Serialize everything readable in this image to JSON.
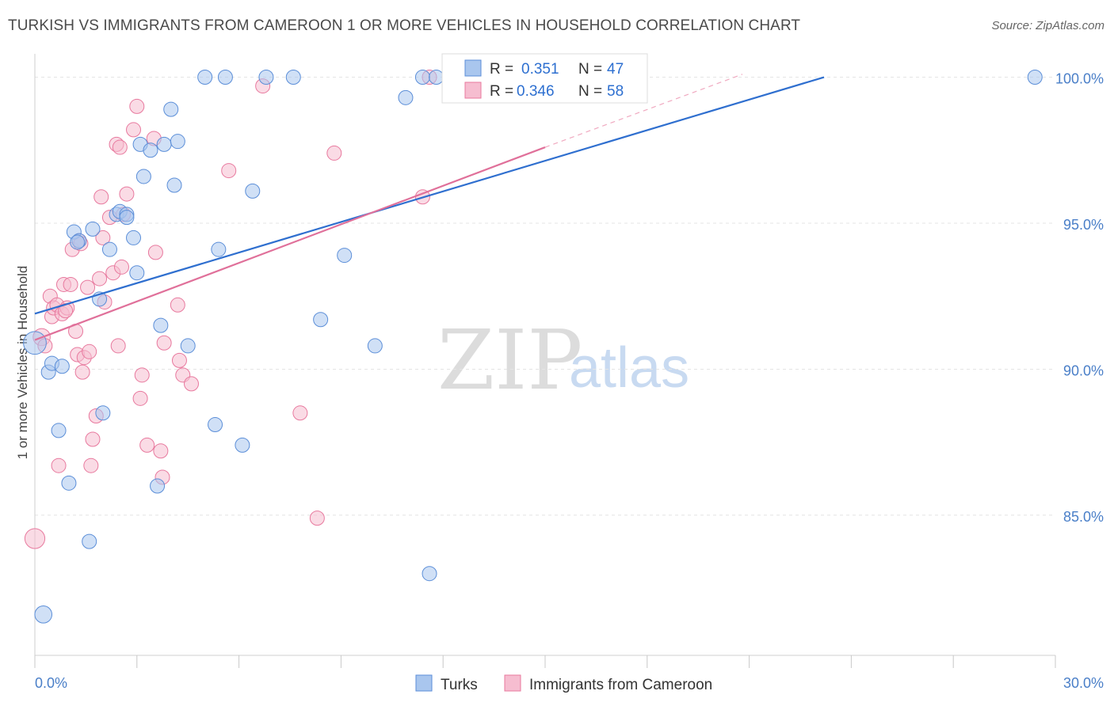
{
  "title": "TURKISH VS IMMIGRANTS FROM CAMEROON 1 OR MORE VEHICLES IN HOUSEHOLD CORRELATION CHART",
  "source": "Source: ZipAtlas.com",
  "colors": {
    "blue": "#5b8ed8",
    "blue_fill": "#a9c6ee",
    "pink": "#e8799e",
    "pink_fill": "#f6bdd0",
    "tick_text": "#4a7fc8"
  },
  "watermark": {
    "part1": "ZIP",
    "part2": "atlas"
  },
  "legend": {
    "r_label": "R =",
    "n_label": "N =",
    "rows": [
      {
        "r": "0.351",
        "n": "47"
      },
      {
        "r": "0.346",
        "n": "58"
      }
    ]
  },
  "chart_data": {
    "type": "scatter",
    "title": "TURKISH VS IMMIGRANTS FROM CAMEROON 1 OR MORE VEHICLES IN HOUSEHOLD CORRELATION CHART",
    "xlabel": "",
    "ylabel": "1 or more Vehicles in Household",
    "xlim": [
      0,
      30
    ],
    "ylim": [
      80.2,
      100.8
    ],
    "x_tick_labels": [
      "0.0%",
      "30.0%"
    ],
    "y_ticks": [
      85,
      90,
      95,
      100
    ],
    "y_tick_labels": [
      "85.0%",
      "90.0%",
      "95.0%",
      "100.0%"
    ],
    "legend_position": "top-center",
    "series": [
      {
        "name": "Turks",
        "color": "blue",
        "r": 0.351,
        "n": 47,
        "trend": {
          "x0": 0,
          "y0": 91.9,
          "x1": 23.2,
          "y1": 100
        },
        "points": [
          {
            "x": 0.0,
            "y": 90.9,
            "s": 1.6
          },
          {
            "x": 0.25,
            "y": 81.6,
            "s": 1.2
          },
          {
            "x": 0.4,
            "y": 89.9,
            "s": 1
          },
          {
            "x": 0.5,
            "y": 90.2,
            "s": 1
          },
          {
            "x": 0.7,
            "y": 87.9,
            "s": 1
          },
          {
            "x": 0.8,
            "y": 90.1,
            "s": 1
          },
          {
            "x": 1.0,
            "y": 86.1,
            "s": 1
          },
          {
            "x": 1.15,
            "y": 94.7,
            "s": 1
          },
          {
            "x": 1.3,
            "y": 94.4,
            "s": 1
          },
          {
            "x": 1.6,
            "y": 84.1,
            "s": 1
          },
          {
            "x": 1.7,
            "y": 94.8,
            "s": 1
          },
          {
            "x": 1.9,
            "y": 92.4,
            "s": 1
          },
          {
            "x": 2.0,
            "y": 88.5,
            "s": 1
          },
          {
            "x": 2.2,
            "y": 94.1,
            "s": 1
          },
          {
            "x": 2.4,
            "y": 95.3,
            "s": 1
          },
          {
            "x": 2.5,
            "y": 95.4,
            "s": 1
          },
          {
            "x": 2.7,
            "y": 95.3,
            "s": 1
          },
          {
            "x": 2.9,
            "y": 94.5,
            "s": 1
          },
          {
            "x": 3.0,
            "y": 93.3,
            "s": 1
          },
          {
            "x": 3.1,
            "y": 97.7,
            "s": 1
          },
          {
            "x": 3.2,
            "y": 96.6,
            "s": 1
          },
          {
            "x": 3.4,
            "y": 97.5,
            "s": 1
          },
          {
            "x": 3.6,
            "y": 86.0,
            "s": 1
          },
          {
            "x": 3.8,
            "y": 97.7,
            "s": 1
          },
          {
            "x": 4.1,
            "y": 96.3,
            "s": 1
          },
          {
            "x": 4.0,
            "y": 98.9,
            "s": 1
          },
          {
            "x": 3.7,
            "y": 91.5,
            "s": 1
          },
          {
            "x": 4.2,
            "y": 97.8,
            "s": 1
          },
          {
            "x": 4.5,
            "y": 90.8,
            "s": 1
          },
          {
            "x": 5.0,
            "y": 100,
            "s": 1
          },
          {
            "x": 5.3,
            "y": 88.1,
            "s": 1
          },
          {
            "x": 5.4,
            "y": 94.1,
            "s": 1
          },
          {
            "x": 5.6,
            "y": 100,
            "s": 1
          },
          {
            "x": 6.1,
            "y": 87.4,
            "s": 1
          },
          {
            "x": 6.4,
            "y": 96.1,
            "s": 1
          },
          {
            "x": 6.8,
            "y": 100,
            "s": 1
          },
          {
            "x": 7.6,
            "y": 100,
            "s": 1
          },
          {
            "x": 8.4,
            "y": 91.7,
            "s": 1
          },
          {
            "x": 9.1,
            "y": 93.9,
            "s": 1
          },
          {
            "x": 10.0,
            "y": 90.8,
            "s": 1
          },
          {
            "x": 10.9,
            "y": 99.3,
            "s": 1
          },
          {
            "x": 11.4,
            "y": 100,
            "s": 1
          },
          {
            "x": 11.6,
            "y": 83.0,
            "s": 1
          },
          {
            "x": 11.8,
            "y": 100,
            "s": 1
          },
          {
            "x": 29.4,
            "y": 100,
            "s": 1
          },
          {
            "x": 2.7,
            "y": 95.2,
            "s": 1
          },
          {
            "x": 1.25,
            "y": 94.35,
            "s": 1
          }
        ]
      },
      {
        "name": "Immigrants from Cameroon",
        "color": "pink",
        "r": 0.346,
        "n": 58,
        "trend": {
          "x0": 0,
          "y0": 91.0,
          "x1": 15.0,
          "y1": 97.6
        },
        "trend_ext": {
          "x0": 15.0,
          "y0": 97.6,
          "x1": 20.8,
          "y1": 100.1
        },
        "points": [
          {
            "x": 0.0,
            "y": 84.2,
            "s": 1.4
          },
          {
            "x": 0.2,
            "y": 91.1,
            "s": 1.2
          },
          {
            "x": 0.3,
            "y": 90.8,
            "s": 1
          },
          {
            "x": 0.45,
            "y": 92.5,
            "s": 1
          },
          {
            "x": 0.5,
            "y": 91.8,
            "s": 1
          },
          {
            "x": 0.55,
            "y": 92.1,
            "s": 1
          },
          {
            "x": 0.65,
            "y": 92.2,
            "s": 1
          },
          {
            "x": 0.7,
            "y": 86.7,
            "s": 1
          },
          {
            "x": 0.8,
            "y": 91.9,
            "s": 1
          },
          {
            "x": 0.85,
            "y": 92.9,
            "s": 1
          },
          {
            "x": 0.95,
            "y": 92.1,
            "s": 1
          },
          {
            "x": 1.05,
            "y": 92.9,
            "s": 1
          },
          {
            "x": 1.1,
            "y": 94.1,
            "s": 1
          },
          {
            "x": 1.2,
            "y": 91.3,
            "s": 1
          },
          {
            "x": 1.25,
            "y": 90.5,
            "s": 1
          },
          {
            "x": 1.3,
            "y": 94.4,
            "s": 1
          },
          {
            "x": 1.4,
            "y": 89.9,
            "s": 1
          },
          {
            "x": 1.45,
            "y": 90.4,
            "s": 1
          },
          {
            "x": 1.55,
            "y": 92.8,
            "s": 1
          },
          {
            "x": 1.6,
            "y": 90.6,
            "s": 1
          },
          {
            "x": 1.65,
            "y": 86.7,
            "s": 1
          },
          {
            "x": 1.7,
            "y": 87.6,
            "s": 1
          },
          {
            "x": 1.8,
            "y": 88.4,
            "s": 1
          },
          {
            "x": 1.9,
            "y": 93.1,
            "s": 1
          },
          {
            "x": 1.95,
            "y": 95.9,
            "s": 1
          },
          {
            "x": 2.0,
            "y": 94.5,
            "s": 1
          },
          {
            "x": 2.05,
            "y": 92.3,
            "s": 1
          },
          {
            "x": 2.2,
            "y": 95.2,
            "s": 1
          },
          {
            "x": 2.3,
            "y": 93.3,
            "s": 1
          },
          {
            "x": 2.4,
            "y": 97.7,
            "s": 1
          },
          {
            "x": 2.45,
            "y": 90.8,
            "s": 1
          },
          {
            "x": 2.5,
            "y": 97.6,
            "s": 1
          },
          {
            "x": 2.55,
            "y": 93.5,
            "s": 1
          },
          {
            "x": 2.7,
            "y": 96.0,
            "s": 1
          },
          {
            "x": 2.9,
            "y": 98.2,
            "s": 1
          },
          {
            "x": 3.0,
            "y": 99.0,
            "s": 1
          },
          {
            "x": 3.1,
            "y": 89.0,
            "s": 1
          },
          {
            "x": 3.15,
            "y": 89.8,
            "s": 1
          },
          {
            "x": 3.3,
            "y": 87.4,
            "s": 1
          },
          {
            "x": 3.5,
            "y": 97.9,
            "s": 1
          },
          {
            "x": 3.55,
            "y": 94.0,
            "s": 1
          },
          {
            "x": 3.7,
            "y": 87.2,
            "s": 1
          },
          {
            "x": 3.75,
            "y": 86.3,
            "s": 1
          },
          {
            "x": 3.8,
            "y": 90.9,
            "s": 1
          },
          {
            "x": 4.2,
            "y": 92.2,
            "s": 1
          },
          {
            "x": 4.25,
            "y": 90.3,
            "s": 1
          },
          {
            "x": 4.35,
            "y": 89.8,
            "s": 1
          },
          {
            "x": 4.6,
            "y": 89.5,
            "s": 1
          },
          {
            "x": 5.7,
            "y": 96.8,
            "s": 1
          },
          {
            "x": 6.7,
            "y": 99.7,
            "s": 1
          },
          {
            "x": 7.8,
            "y": 88.5,
            "s": 1
          },
          {
            "x": 8.3,
            "y": 84.9,
            "s": 1
          },
          {
            "x": 8.8,
            "y": 97.4,
            "s": 1
          },
          {
            "x": 11.4,
            "y": 95.9,
            "s": 1
          },
          {
            "x": 11.6,
            "y": 100,
            "s": 1
          },
          {
            "x": 1.35,
            "y": 94.3,
            "s": 1
          },
          {
            "x": 2.6,
            "y": 95.3,
            "s": 1
          },
          {
            "x": 0.9,
            "y": 92.0,
            "s": 1
          }
        ]
      }
    ]
  },
  "bottom_legend": [
    {
      "label": "Turks",
      "color": "blue"
    },
    {
      "label": "Immigrants from Cameroon",
      "color": "pink"
    }
  ]
}
